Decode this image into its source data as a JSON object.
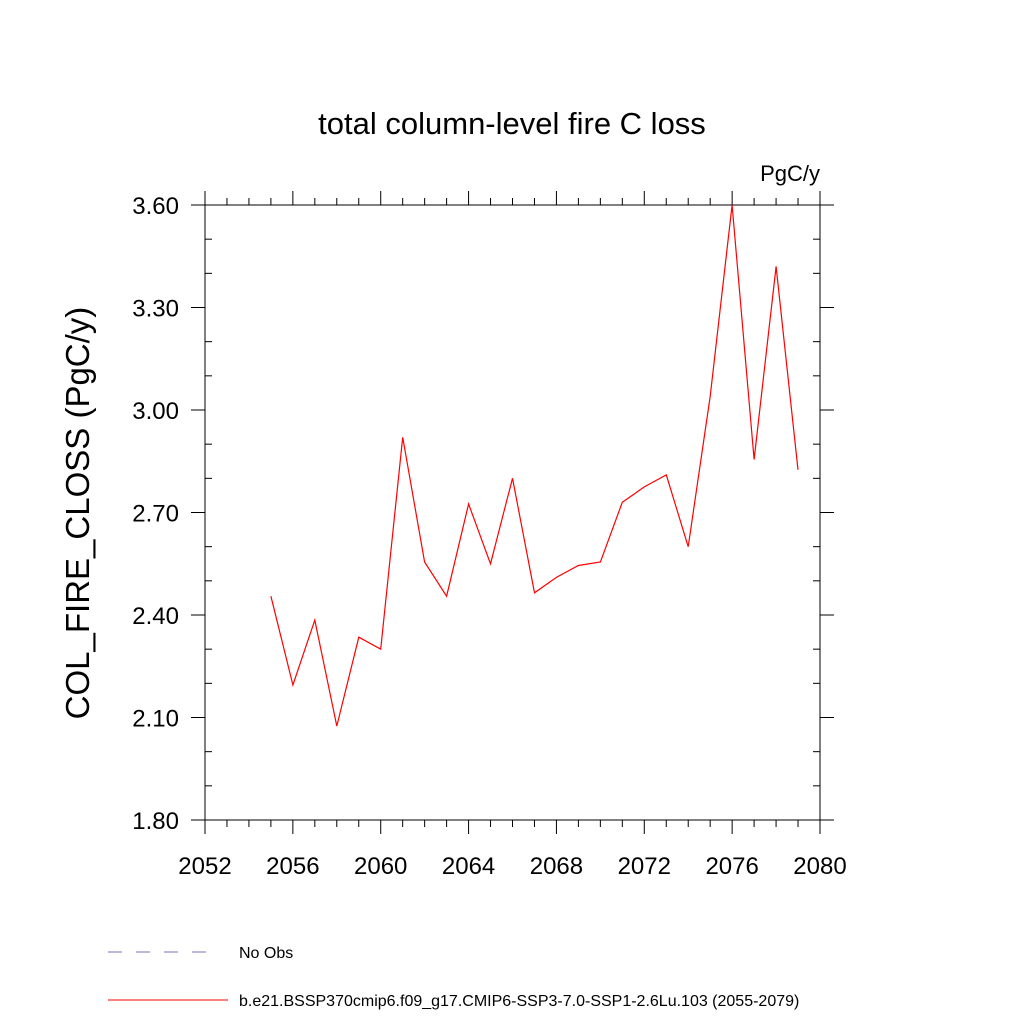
{
  "chart_data": {
    "type": "line",
    "title": "total column-level fire C loss",
    "units_label": "PgC/y",
    "xlabel": "",
    "ylabel": "COL_FIRE_CLOSS  (PgC/y)",
    "xlim": [
      2052,
      2080
    ],
    "ylim": [
      1.8,
      3.6
    ],
    "x_ticks": [
      2052,
      2056,
      2060,
      2064,
      2068,
      2072,
      2076,
      2080
    ],
    "x_tick_labels": [
      "2052",
      "2056",
      "2060",
      "2064",
      "2068",
      "2072",
      "2076",
      "2080"
    ],
    "y_ticks": [
      1.8,
      2.1,
      2.4,
      2.7,
      3.0,
      3.3,
      3.6
    ],
    "y_tick_labels": [
      "1.80",
      "2.10",
      "2.40",
      "2.70",
      "3.00",
      "3.30",
      "3.60"
    ],
    "x_minor_step": 1,
    "y_minor_step": 0.1,
    "grid": false,
    "series": [
      {
        "name": "b.e21.BSSP370cmip6.f09_g17.CMIP6-SSP3-7.0-SSP1-2.6Lu.103 (2055-2079)",
        "color": "#ff0000",
        "style": "solid",
        "x": [
          2055,
          2056,
          2057,
          2058,
          2059,
          2060,
          2061,
          2062,
          2063,
          2064,
          2065,
          2066,
          2067,
          2068,
          2069,
          2070,
          2071,
          2072,
          2073,
          2074,
          2075,
          2076,
          2077,
          2078,
          2079
        ],
        "y": [
          2.455,
          2.195,
          2.385,
          2.075,
          2.335,
          2.3,
          2.92,
          2.555,
          2.455,
          2.725,
          2.55,
          2.8,
          2.465,
          2.51,
          2.545,
          2.555,
          2.73,
          2.775,
          2.81,
          2.6,
          3.04,
          3.6,
          2.855,
          3.42,
          2.825
        ]
      }
    ],
    "legend": [
      {
        "label": "No Obs",
        "color": "#7a6fc0",
        "style": "dashed"
      },
      {
        "label": "b.e21.BSSP370cmip6.f09_g17.CMIP6-SSP3-7.0-SSP1-2.6Lu.103 (2055-2079)",
        "color": "#ff0000",
        "style": "solid"
      }
    ],
    "legend_position": "bottom-left"
  }
}
